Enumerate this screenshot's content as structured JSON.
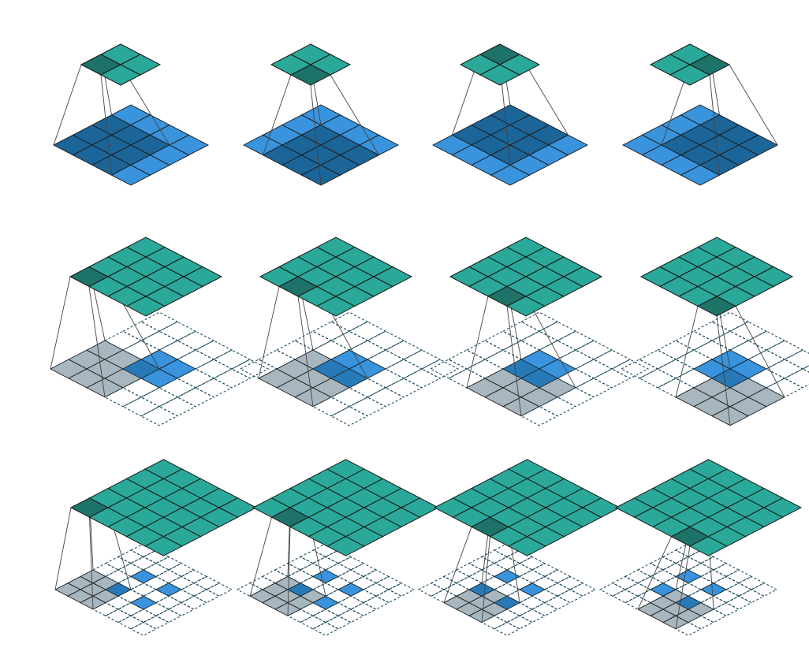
{
  "colors": {
    "output": "#2aa89a",
    "output_active": "#1d7368",
    "input": "#3993dd",
    "input_active": "#1c6598",
    "pad_region": "#a3b3bc",
    "padding_dash": "#1e4a5c",
    "edge": "#1a1a1a",
    "connector": "#444444"
  },
  "rows": [
    {
      "kind": "convolution",
      "input": {
        "size": 4,
        "cells": "all"
      },
      "output": {
        "size": 2
      },
      "kernel": 3,
      "stride": 1,
      "panels": [
        {
          "out_cell": [
            0,
            0
          ],
          "kernel_at": [
            0,
            0
          ]
        },
        {
          "out_cell": [
            0,
            1
          ],
          "kernel_at": [
            0,
            1
          ]
        },
        {
          "out_cell": [
            1,
            0
          ],
          "kernel_at": [
            1,
            0
          ]
        },
        {
          "out_cell": [
            1,
            1
          ],
          "kernel_at": [
            1,
            1
          ]
        }
      ]
    },
    {
      "kind": "transposed-convolution",
      "input": {
        "size": 2,
        "padding": 2,
        "dilation": 1
      },
      "output": {
        "size": 4
      },
      "kernel": 3,
      "stride": 1,
      "panels": [
        {
          "out_cell": [
            0,
            0
          ],
          "kernel_at": [
            0,
            0
          ]
        },
        {
          "out_cell": [
            0,
            1
          ],
          "kernel_at": [
            0,
            1
          ]
        },
        {
          "out_cell": [
            0,
            2
          ],
          "kernel_at": [
            0,
            2
          ]
        },
        {
          "out_cell": [
            0,
            3
          ],
          "kernel_at": [
            0,
            3
          ]
        }
      ]
    },
    {
      "kind": "transposed-convolution-strided",
      "input": {
        "size": 2,
        "padding": 2,
        "dilation": 2
      },
      "output": {
        "size": 5
      },
      "kernel": 3,
      "stride": 1,
      "panels": [
        {
          "out_cell": [
            0,
            0
          ],
          "kernel_at": [
            0,
            0
          ]
        },
        {
          "out_cell": [
            0,
            1
          ],
          "kernel_at": [
            0,
            1
          ]
        },
        {
          "out_cell": [
            0,
            2
          ],
          "kernel_at": [
            0,
            2
          ]
        },
        {
          "out_cell": [
            0,
            3
          ],
          "kernel_at": [
            0,
            3
          ]
        }
      ]
    }
  ]
}
